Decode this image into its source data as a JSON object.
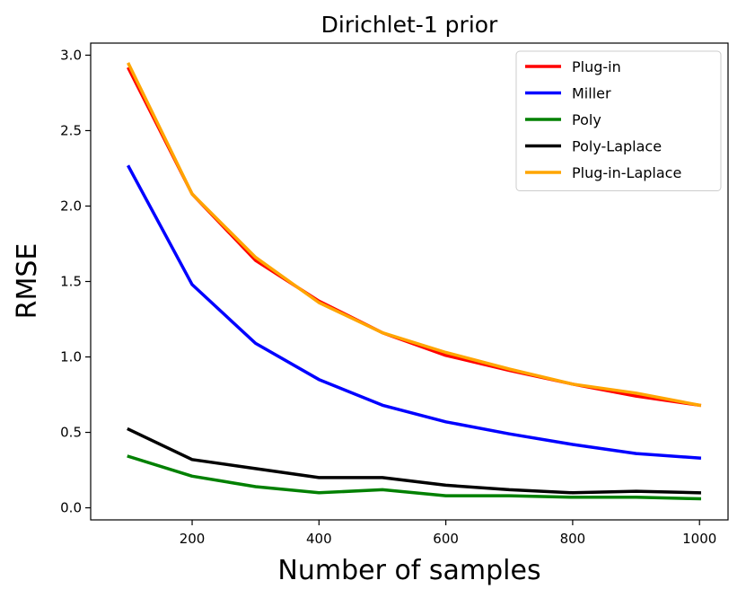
{
  "chart_data": {
    "type": "line",
    "title": "Dirichlet-1 prior",
    "xlabel": "Number of samples",
    "ylabel": "RMSE",
    "x": [
      100,
      200,
      300,
      400,
      500,
      600,
      700,
      800,
      900,
      1000
    ],
    "xlim": [
      40,
      1045
    ],
    "ylim": [
      -0.08,
      3.08
    ],
    "xticks": [
      200,
      400,
      600,
      800,
      1000
    ],
    "yticks": [
      0.0,
      0.5,
      1.0,
      1.5,
      2.0,
      2.5,
      3.0
    ],
    "xtick_labels": [
      "200",
      "400",
      "600",
      "800",
      "1000"
    ],
    "ytick_labels": [
      "0.0",
      "0.5",
      "1.0",
      "1.5",
      "2.0",
      "2.5",
      "3.0"
    ],
    "grid": false,
    "legend_position": "top-right",
    "series": [
      {
        "name": "Plug-in",
        "color": "#ff0000",
        "values": [
          2.91,
          2.08,
          1.64,
          1.37,
          1.16,
          1.01,
          0.91,
          0.82,
          0.74,
          0.68
        ]
      },
      {
        "name": "Miller",
        "color": "#0000ff",
        "values": [
          2.26,
          1.48,
          1.09,
          0.85,
          0.68,
          0.57,
          0.49,
          0.42,
          0.36,
          0.33
        ]
      },
      {
        "name": "Poly",
        "color": "#008000",
        "values": [
          0.34,
          0.21,
          0.14,
          0.1,
          0.12,
          0.08,
          0.08,
          0.07,
          0.07,
          0.06
        ]
      },
      {
        "name": "Poly-Laplace",
        "color": "#000000",
        "values": [
          0.52,
          0.32,
          0.26,
          0.2,
          0.2,
          0.15,
          0.12,
          0.1,
          0.11,
          0.1
        ]
      },
      {
        "name": "Plug-in-Laplace",
        "color": "#ffa500",
        "values": [
          2.94,
          2.08,
          1.66,
          1.36,
          1.16,
          1.03,
          0.92,
          0.82,
          0.76,
          0.68
        ]
      }
    ]
  }
}
